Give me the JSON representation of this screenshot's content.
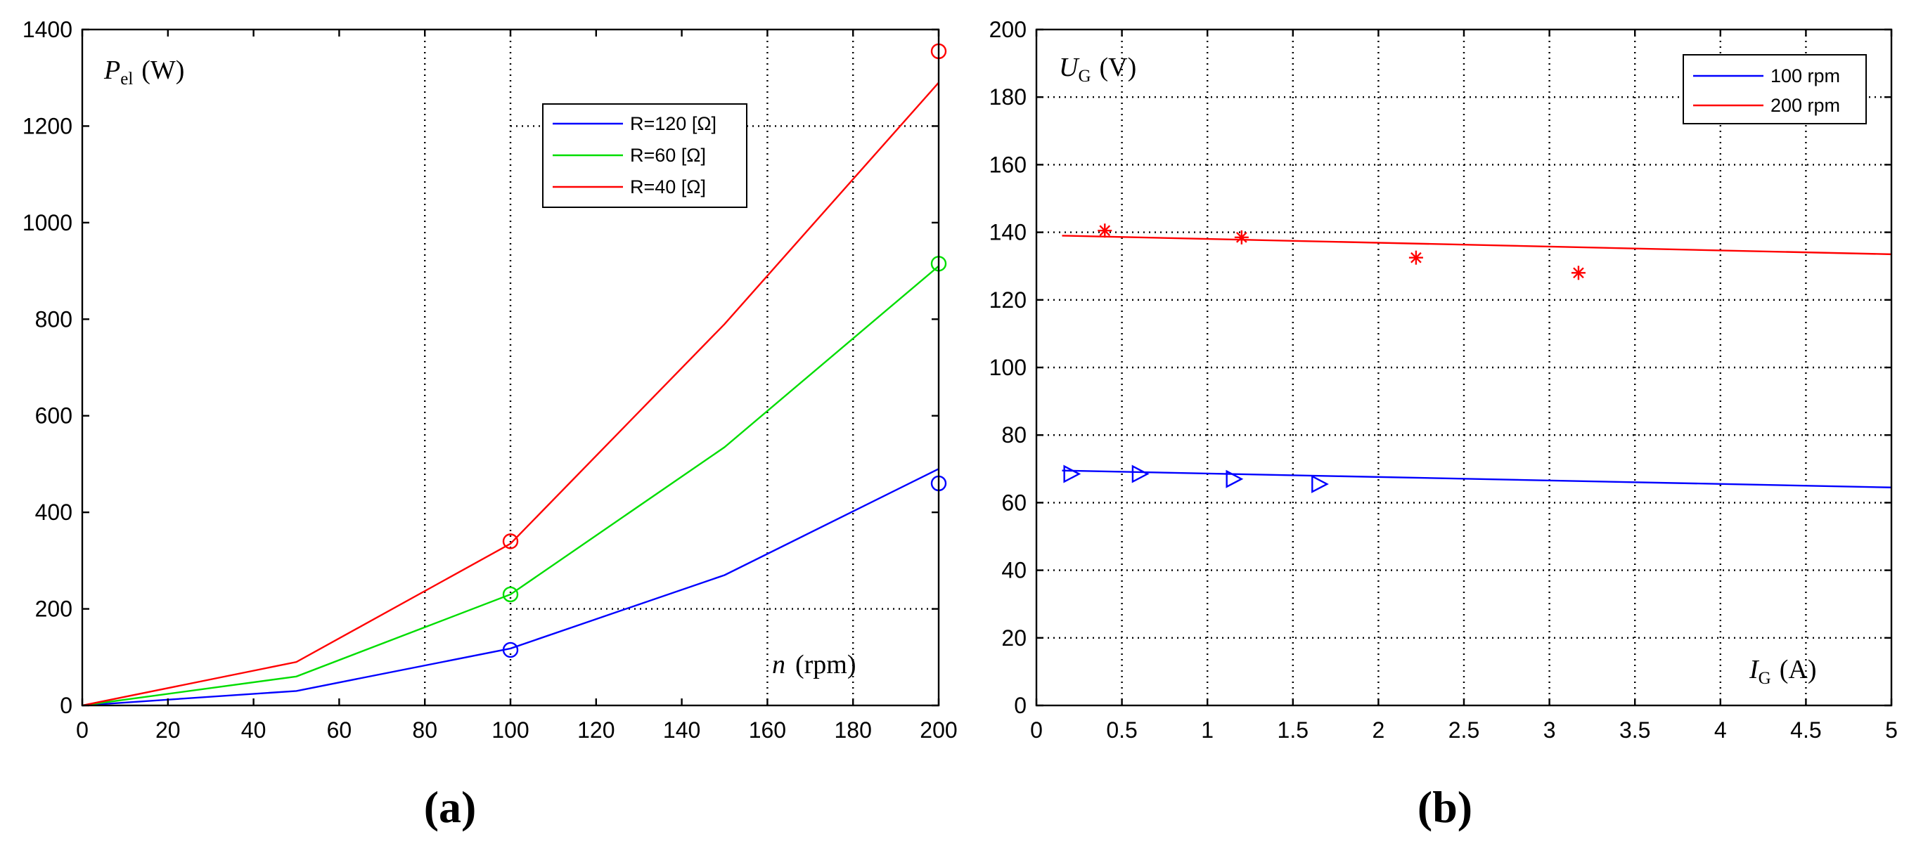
{
  "chart_data": [
    {
      "type": "line",
      "panel_label": "(a)",
      "ylabel_symbol": "P",
      "ylabel_sub": "el",
      "ylabel_unit": "(W)",
      "xlabel_symbol": "n",
      "xlabel_unit": "(rpm)",
      "xlim": [
        0,
        200
      ],
      "ylim": [
        0,
        1400
      ],
      "xticks": [
        0,
        20,
        40,
        60,
        80,
        100,
        120,
        140,
        160,
        180,
        200
      ],
      "yticks": [
        0,
        200,
        400,
        600,
        800,
        1000,
        1200,
        1400
      ],
      "grid_x": [
        80,
        100,
        160,
        180
      ],
      "grid_y": [
        200,
        1200
      ],
      "grid_y_start_x": 100,
      "legend_position": "top-right",
      "series": [
        {
          "name": "R=120 [Ω]",
          "color": "#0000ff",
          "x": [
            0,
            50,
            100,
            150,
            200
          ],
          "y": [
            0,
            30,
            118,
            270,
            490
          ],
          "markers_x": [
            100,
            200
          ],
          "markers_y": [
            115,
            460
          ],
          "marker": "circle"
        },
        {
          "name": "R=60 [Ω]",
          "color": "#00dd00",
          "x": [
            0,
            50,
            100,
            150,
            200
          ],
          "y": [
            0,
            60,
            230,
            535,
            910
          ],
          "markers_x": [
            100,
            200
          ],
          "markers_y": [
            230,
            915
          ],
          "marker": "circle"
        },
        {
          "name": "R=40 [Ω]",
          "color": "#ff0000",
          "x": [
            0,
            50,
            100,
            150,
            200
          ],
          "y": [
            0,
            90,
            335,
            790,
            1290
          ],
          "markers_x": [
            100,
            200
          ],
          "markers_y": [
            340,
            1355
          ],
          "marker": "circle"
        }
      ]
    },
    {
      "type": "line",
      "panel_label": "(b)",
      "ylabel_symbol": "U",
      "ylabel_sub": "G",
      "ylabel_unit": "(V)",
      "xlabel_symbol": "I",
      "xlabel_sub": "G",
      "xlabel_unit": "(A)",
      "xlim": [
        0,
        5
      ],
      "ylim": [
        0,
        200
      ],
      "xticks": [
        0,
        0.5,
        1,
        1.5,
        2,
        2.5,
        3,
        3.5,
        4,
        4.5,
        5
      ],
      "yticks": [
        0,
        20,
        40,
        60,
        80,
        100,
        120,
        140,
        160,
        180,
        200
      ],
      "grid_x": [
        0.5,
        1,
        1.5,
        2,
        2.5,
        3,
        3.5,
        4,
        4.5
      ],
      "grid_y": [
        20,
        40,
        60,
        80,
        100,
        120,
        140,
        160,
        180
      ],
      "legend_position": "top-right",
      "series": [
        {
          "name": "100 rpm",
          "color": "#0000ff",
          "x": [
            0.15,
            5
          ],
          "y": [
            69.5,
            64.5
          ],
          "markers_x": [
            0.2,
            0.6,
            1.15,
            1.65
          ],
          "markers_y": [
            68.5,
            68.5,
            67,
            65.5
          ],
          "marker": "triangle-right"
        },
        {
          "name": "200 rpm",
          "color": "#ff0000",
          "x": [
            0.15,
            5
          ],
          "y": [
            139,
            133.5
          ],
          "markers_x": [
            0.4,
            1.2,
            2.22,
            3.17
          ],
          "markers_y": [
            140.5,
            138.5,
            132.5,
            128
          ],
          "marker": "asterisk"
        }
      ]
    }
  ]
}
